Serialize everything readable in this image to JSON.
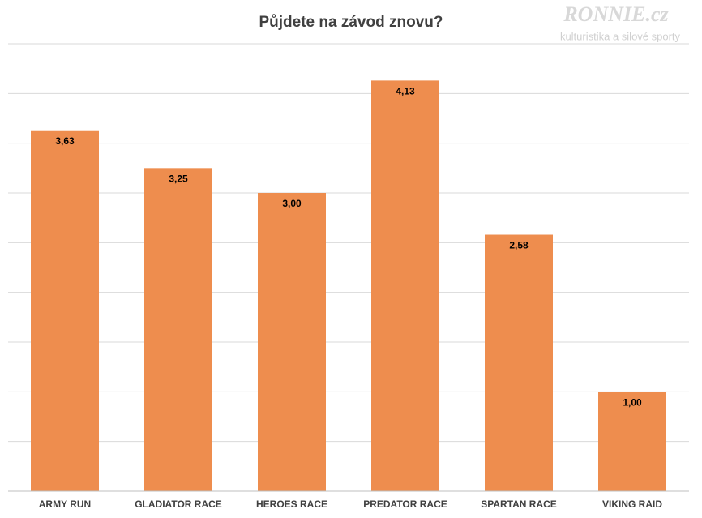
{
  "chart_data": {
    "type": "bar",
    "title": "Půjdete na závod znovu?",
    "watermark": {
      "brand": "RONNIE.cz",
      "tagline": "kulturistika a silové sporty"
    },
    "categories": [
      "ARMY RUN",
      "GLADIATOR RACE",
      "HEROES RACE",
      "PREDATOR RACE",
      "SPARTAN RACE",
      "VIKING RAID"
    ],
    "values": [
      3.63,
      3.25,
      3.0,
      4.13,
      2.58,
      1.0
    ],
    "value_labels": [
      "3,63",
      "3,25",
      "3,00",
      "4,13",
      "2,58",
      "1,00"
    ],
    "color": "#ee8d4e",
    "ylim": [
      0,
      4.5
    ],
    "yticks": [
      0,
      0.5,
      1,
      1.5,
      2,
      2.5,
      3,
      3.5,
      4,
      4.5
    ],
    "grid": true
  }
}
